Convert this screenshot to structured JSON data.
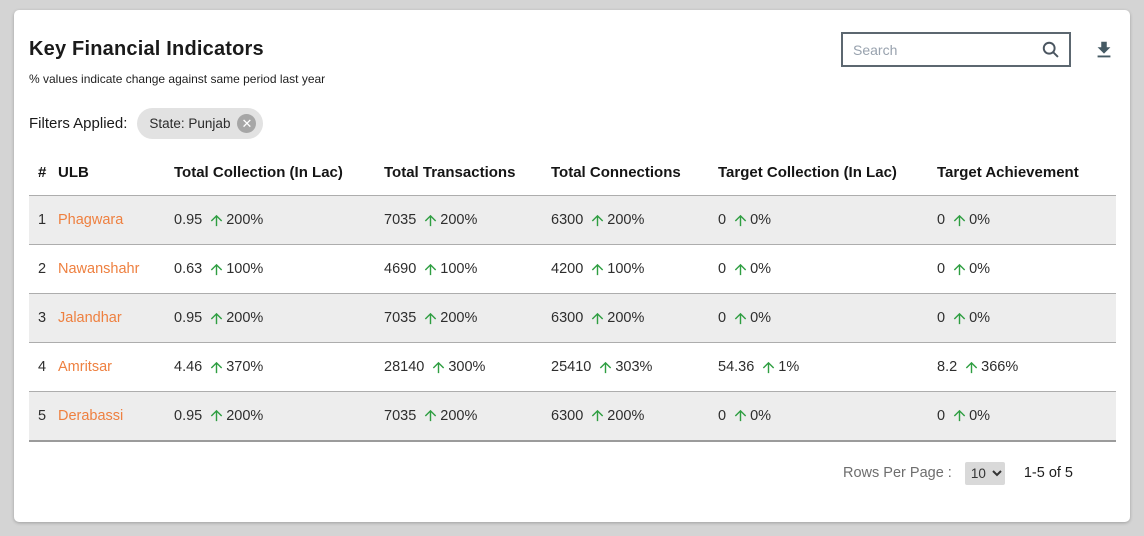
{
  "header": {
    "title": "Key Financial Indicators",
    "subtitle": "% values indicate change against same period last year",
    "search": {
      "placeholder": "Search",
      "value": ""
    },
    "icons": {
      "search": "magnifier",
      "download": "download-arrow-with-bar"
    }
  },
  "filters": {
    "label": "Filters Applied:",
    "chips": [
      {
        "label": "State: Punjab",
        "close_icon": "circle-x"
      }
    ]
  },
  "table": {
    "columns": [
      "#",
      "ULB",
      "Total Collection (In Lac)",
      "Total Transactions",
      "Total Connections",
      "Target Collection (In Lac)",
      "Target Achievement"
    ],
    "rows": [
      {
        "index": "1",
        "ulb": "Phagwara",
        "metrics": [
          {
            "value": "0.95",
            "pct": "200%"
          },
          {
            "value": "7035",
            "pct": "200%"
          },
          {
            "value": "6300",
            "pct": "200%"
          },
          {
            "value": "0",
            "pct": "0%"
          },
          {
            "value": "0",
            "pct": "0%"
          }
        ]
      },
      {
        "index": "2",
        "ulb": "Nawanshahr",
        "metrics": [
          {
            "value": "0.63",
            "pct": "100%"
          },
          {
            "value": "4690",
            "pct": "100%"
          },
          {
            "value": "4200",
            "pct": "100%"
          },
          {
            "value": "0",
            "pct": "0%"
          },
          {
            "value": "0",
            "pct": "0%"
          }
        ]
      },
      {
        "index": "3",
        "ulb": "Jalandhar",
        "metrics": [
          {
            "value": "0.95",
            "pct": "200%"
          },
          {
            "value": "7035",
            "pct": "200%"
          },
          {
            "value": "6300",
            "pct": "200%"
          },
          {
            "value": "0",
            "pct": "0%"
          },
          {
            "value": "0",
            "pct": "0%"
          }
        ]
      },
      {
        "index": "4",
        "ulb": "Amritsar",
        "metrics": [
          {
            "value": "4.46",
            "pct": "370%"
          },
          {
            "value": "28140",
            "pct": "300%"
          },
          {
            "value": "25410",
            "pct": "303%"
          },
          {
            "value": "54.36",
            "pct": "1%"
          },
          {
            "value": "8.2",
            "pct": "366%"
          }
        ]
      },
      {
        "index": "5",
        "ulb": "Derabassi",
        "metrics": [
          {
            "value": "0.95",
            "pct": "200%"
          },
          {
            "value": "7035",
            "pct": "200%"
          },
          {
            "value": "6300",
            "pct": "200%"
          },
          {
            "value": "0",
            "pct": "0%"
          },
          {
            "value": "0",
            "pct": "0%"
          }
        ]
      }
    ],
    "trend_icon": "arrow-up"
  },
  "pagination": {
    "rows_per_page_label": "Rows Per Page :",
    "rows_per_page_value": "10",
    "range_label": "1-5 of 5"
  },
  "colors": {
    "page_background": "#d4d4d4",
    "card_background": "#ffffff",
    "ulb_link_orange": "#ee8040",
    "trend_arrow_green": "#2e9e41",
    "icon_slate": "#455a64",
    "row_stripe": "#ededed",
    "chip_background": "#e2e2e2"
  }
}
